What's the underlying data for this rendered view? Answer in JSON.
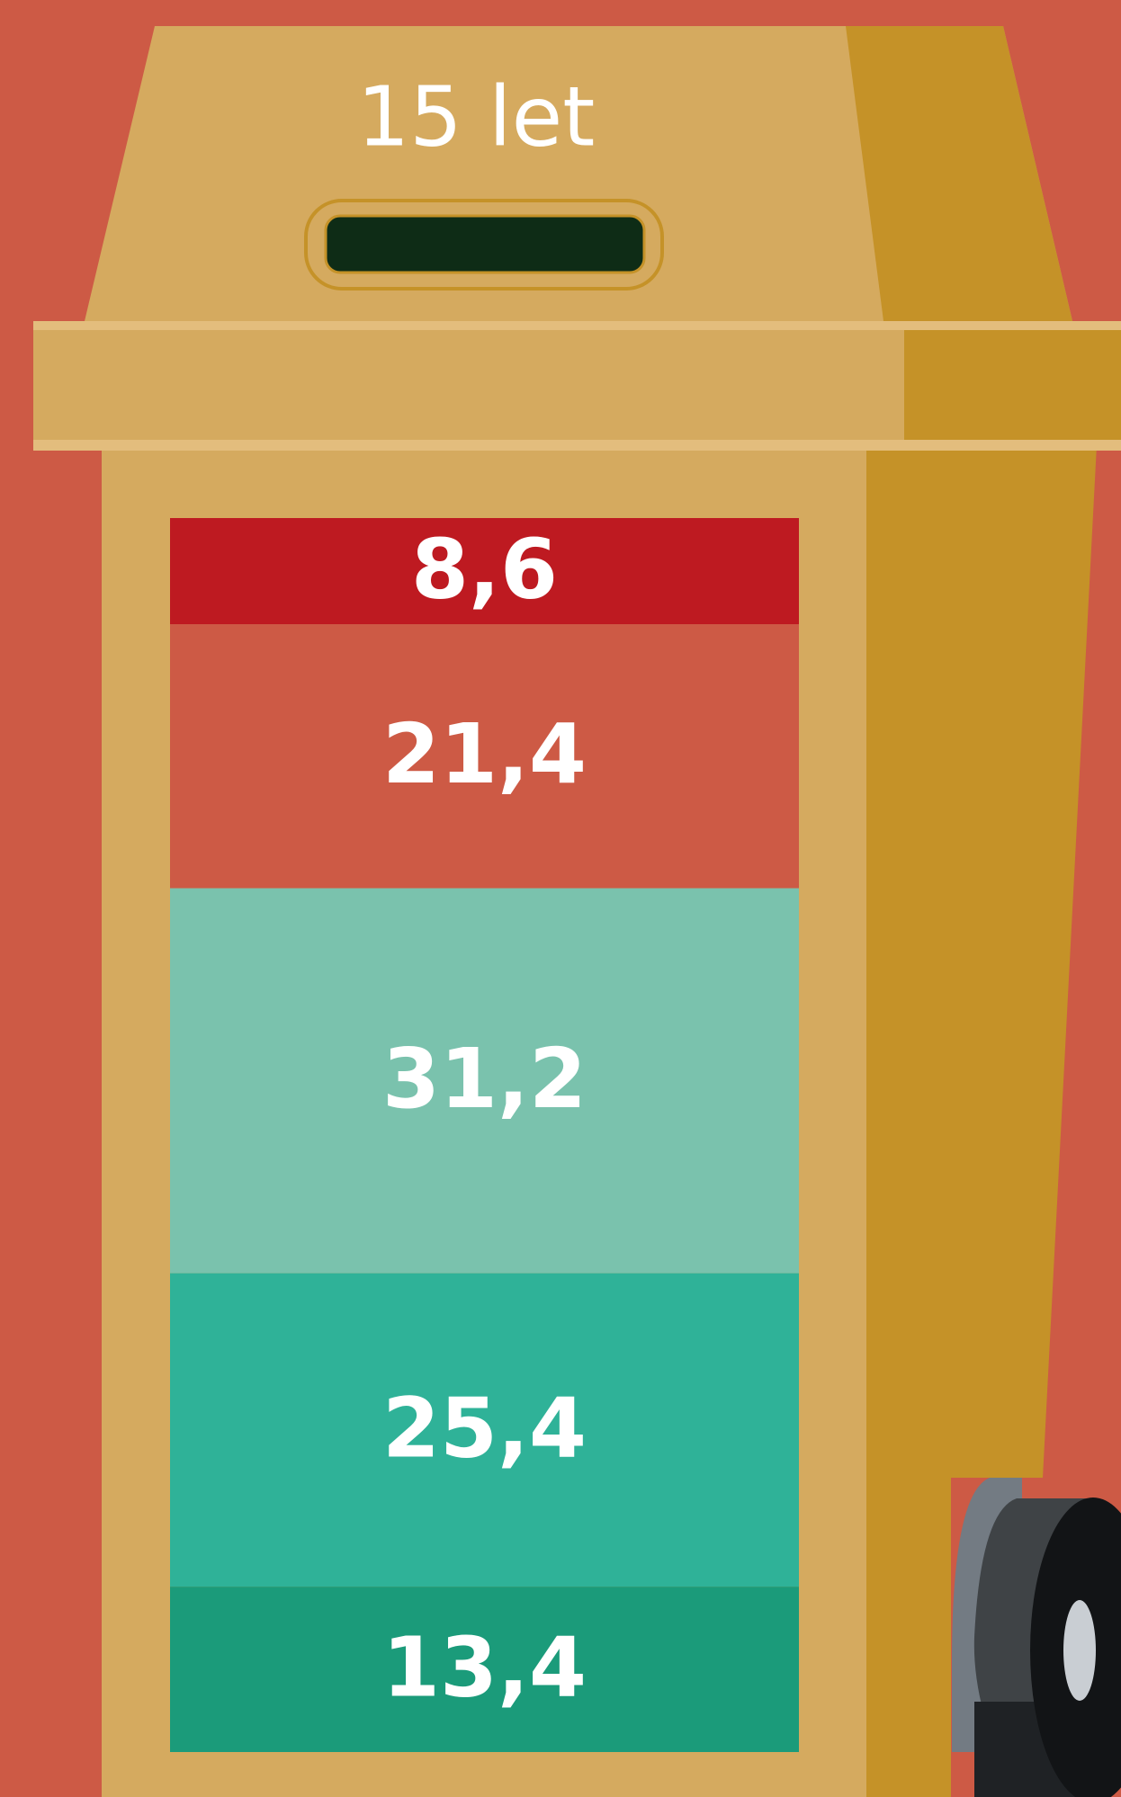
{
  "chart_data": {
    "type": "stacked-bar",
    "title": "15 let",
    "values": [
      8.6,
      21.4,
      31.2,
      25.4,
      13.4
    ],
    "value_labels": [
      "8,6",
      "21,4",
      "31,2",
      "25,4",
      "13,4"
    ],
    "colors": [
      "#be1a21",
      "#cd5a45",
      "#7ac2ad",
      "#2fb298",
      "#1b9b7a"
    ]
  }
}
